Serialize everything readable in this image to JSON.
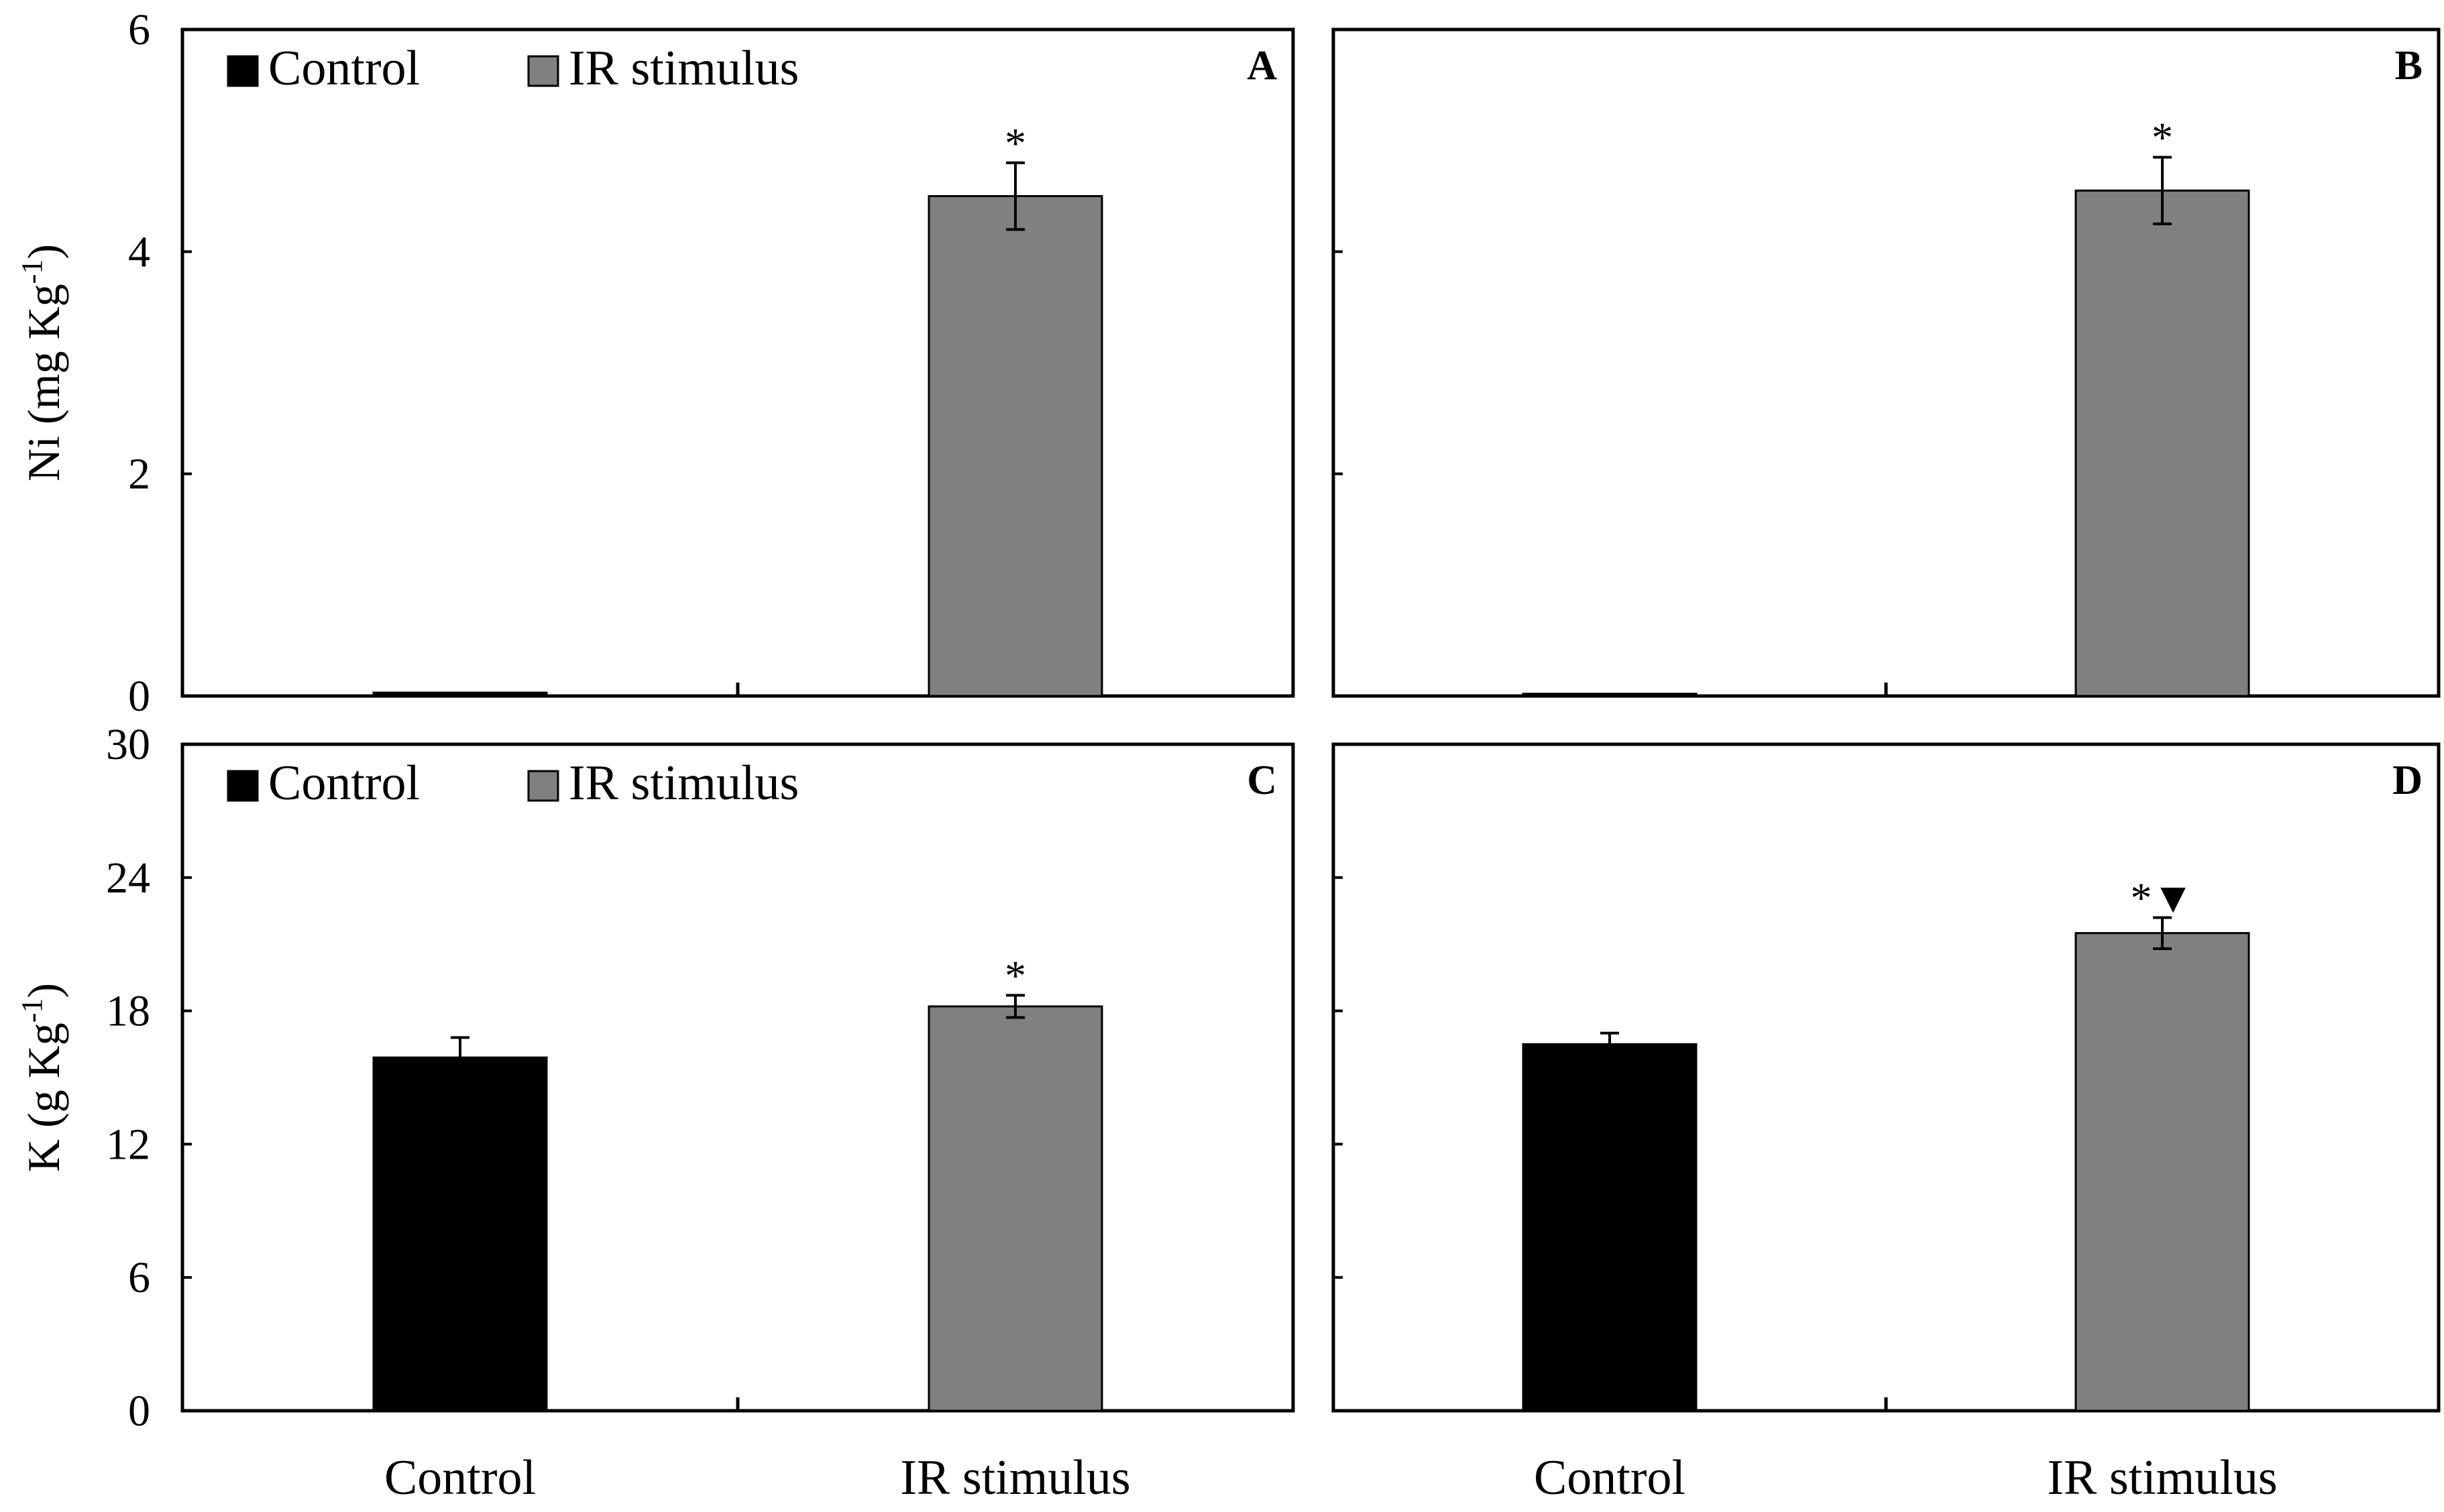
{
  "colors": {
    "control": "#000000",
    "ir": "#808080",
    "axis": "#000000",
    "background": "#ffffff"
  },
  "legend": {
    "control": "Control",
    "ir": "IR stimulus"
  },
  "chart_data": [
    {
      "type": "bar",
      "panel": "A",
      "categories": [
        "Control",
        "IR stimulus"
      ],
      "values": [
        0.03,
        4.5
      ],
      "errors": [
        0,
        0.3
      ],
      "significance": [
        "",
        "*"
      ],
      "ylabel": "Ni (mg Kg-1)",
      "ylabel_parts": {
        "main": "Ni (mg Kg",
        "sup": "-1",
        "tail": ")"
      },
      "ylim": [
        0,
        6
      ],
      "yticks": [
        0,
        2,
        4,
        6
      ],
      "ytick_labels": [
        "0",
        "2",
        "4",
        "6"
      ],
      "show_ytick_labels": true,
      "legend": true,
      "legend_position": "top-left"
    },
    {
      "type": "bar",
      "panel": "B",
      "categories": [
        "Control",
        "IR stimulus"
      ],
      "values": [
        0.02,
        4.55
      ],
      "errors": [
        0,
        0.3
      ],
      "significance": [
        "",
        "*"
      ],
      "ylim": [
        0,
        6
      ],
      "yticks": [
        0,
        2,
        4,
        6
      ],
      "show_ytick_labels": false,
      "legend": false
    },
    {
      "type": "bar",
      "panel": "C",
      "categories": [
        "Control",
        "IR stimulus"
      ],
      "values": [
        15.9,
        18.2
      ],
      "errors": [
        0.9,
        0.5
      ],
      "significance": [
        "",
        "*"
      ],
      "ylabel": "K (g Kg-1)",
      "ylabel_parts": {
        "main": "K (g Kg",
        "sup": "-1",
        "tail": ")"
      },
      "ylim": [
        0,
        30
      ],
      "yticks": [
        0,
        6,
        12,
        18,
        24,
        30
      ],
      "ytick_labels": [
        "0",
        "6",
        "12",
        "18",
        "24",
        "30"
      ],
      "show_ytick_labels": true,
      "legend": true,
      "legend_position": "top-left"
    },
    {
      "type": "bar",
      "panel": "D",
      "categories": [
        "Control",
        "IR stimulus"
      ],
      "values": [
        16.5,
        21.5
      ],
      "errors": [
        0.5,
        0.7
      ],
      "significance": [
        "",
        "*▼"
      ],
      "ylim": [
        0,
        30
      ],
      "yticks": [
        0,
        6,
        12,
        18,
        24,
        30
      ],
      "show_ytick_labels": false,
      "legend": false
    }
  ],
  "x_category_labels": [
    {
      "panel": "C",
      "labels": [
        "Control",
        "IR stimulus"
      ]
    },
    {
      "panel": "D",
      "labels": [
        "Control",
        "IR stimulus"
      ]
    }
  ]
}
